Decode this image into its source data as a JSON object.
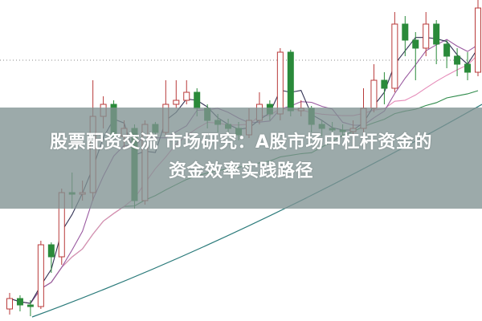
{
  "title": {
    "line1": "股票配资交流 市场研究：A股市场中杠杆资金的",
    "line2": "资金效率实践路径"
  },
  "chart_data": {
    "type": "candlestick",
    "title": "",
    "xlabel": "",
    "ylabel": "",
    "grid": false,
    "reference_line_level": 325,
    "colors": {
      "up": "#b83a3a",
      "down": "#2a8a3a",
      "ma5": "#333355",
      "ma10": "#9a5aa0",
      "ma20": "#e58ab8",
      "ma60": "#2e8a4a",
      "long": "#2a7a7a",
      "band": "#809292"
    },
    "candles": [
      {
        "o": 15,
        "c": 28,
        "h": 35,
        "l": 8
      },
      {
        "o": 28,
        "c": 20,
        "h": 32,
        "l": 12
      },
      {
        "o": 20,
        "c": 18,
        "h": 26,
        "l": 6
      },
      {
        "o": 18,
        "c": 95,
        "h": 100,
        "l": 15
      },
      {
        "o": 95,
        "c": 80,
        "h": 98,
        "l": 60
      },
      {
        "o": 80,
        "c": 160,
        "h": 165,
        "l": 70
      },
      {
        "o": 160,
        "c": 158,
        "h": 185,
        "l": 140
      },
      {
        "o": 158,
        "c": 160,
        "h": 175,
        "l": 150
      },
      {
        "o": 160,
        "c": 255,
        "h": 300,
        "l": 150
      },
      {
        "o": 255,
        "c": 270,
        "h": 280,
        "l": 240
      },
      {
        "o": 270,
        "c": 230,
        "h": 275,
        "l": 225
      },
      {
        "o": 230,
        "c": 240,
        "h": 250,
        "l": 215
      },
      {
        "o": 240,
        "c": 150,
        "h": 245,
        "l": 140
      },
      {
        "o": 150,
        "c": 245,
        "h": 250,
        "l": 145
      },
      {
        "o": 245,
        "c": 235,
        "h": 248,
        "l": 230
      },
      {
        "o": 235,
        "c": 270,
        "h": 300,
        "l": 230
      },
      {
        "o": 270,
        "c": 275,
        "h": 300,
        "l": 265
      },
      {
        "o": 275,
        "c": 285,
        "h": 300,
        "l": 270
      },
      {
        "o": 285,
        "c": 265,
        "h": 290,
        "l": 255
      },
      {
        "o": 265,
        "c": 250,
        "h": 270,
        "l": 240
      },
      {
        "o": 250,
        "c": 245,
        "h": 258,
        "l": 235
      },
      {
        "o": 245,
        "c": 240,
        "h": 252,
        "l": 230
      },
      {
        "o": 240,
        "c": 232,
        "h": 248,
        "l": 225
      },
      {
        "o": 232,
        "c": 250,
        "h": 265,
        "l": 228
      },
      {
        "o": 250,
        "c": 270,
        "h": 285,
        "l": 245
      },
      {
        "o": 270,
        "c": 258,
        "h": 275,
        "l": 250
      },
      {
        "o": 258,
        "c": 335,
        "h": 340,
        "l": 250
      },
      {
        "o": 335,
        "c": 262,
        "h": 338,
        "l": 255
      },
      {
        "o": 262,
        "c": 265,
        "h": 275,
        "l": 255
      },
      {
        "o": 265,
        "c": 245,
        "h": 268,
        "l": 235
      },
      {
        "o": 245,
        "c": 240,
        "h": 250,
        "l": 230
      },
      {
        "o": 240,
        "c": 238,
        "h": 248,
        "l": 228
      },
      {
        "o": 238,
        "c": 236,
        "h": 245,
        "l": 228
      },
      {
        "o": 236,
        "c": 240,
        "h": 250,
        "l": 230
      },
      {
        "o": 240,
        "c": 265,
        "h": 290,
        "l": 235
      },
      {
        "o": 265,
        "c": 300,
        "h": 320,
        "l": 260
      },
      {
        "o": 300,
        "c": 290,
        "h": 310,
        "l": 270
      },
      {
        "o": 290,
        "c": 370,
        "h": 385,
        "l": 285
      },
      {
        "o": 370,
        "c": 350,
        "h": 380,
        "l": 330
      },
      {
        "o": 350,
        "c": 340,
        "h": 360,
        "l": 300
      },
      {
        "o": 340,
        "c": 370,
        "h": 385,
        "l": 330
      },
      {
        "o": 370,
        "c": 345,
        "h": 375,
        "l": 320
      },
      {
        "o": 345,
        "c": 330,
        "h": 350,
        "l": 315
      },
      {
        "o": 330,
        "c": 320,
        "h": 340,
        "l": 305
      },
      {
        "o": 320,
        "c": 310,
        "h": 335,
        "l": 300
      },
      {
        "o": 310,
        "c": 390,
        "h": 400,
        "l": 305
      }
    ]
  }
}
